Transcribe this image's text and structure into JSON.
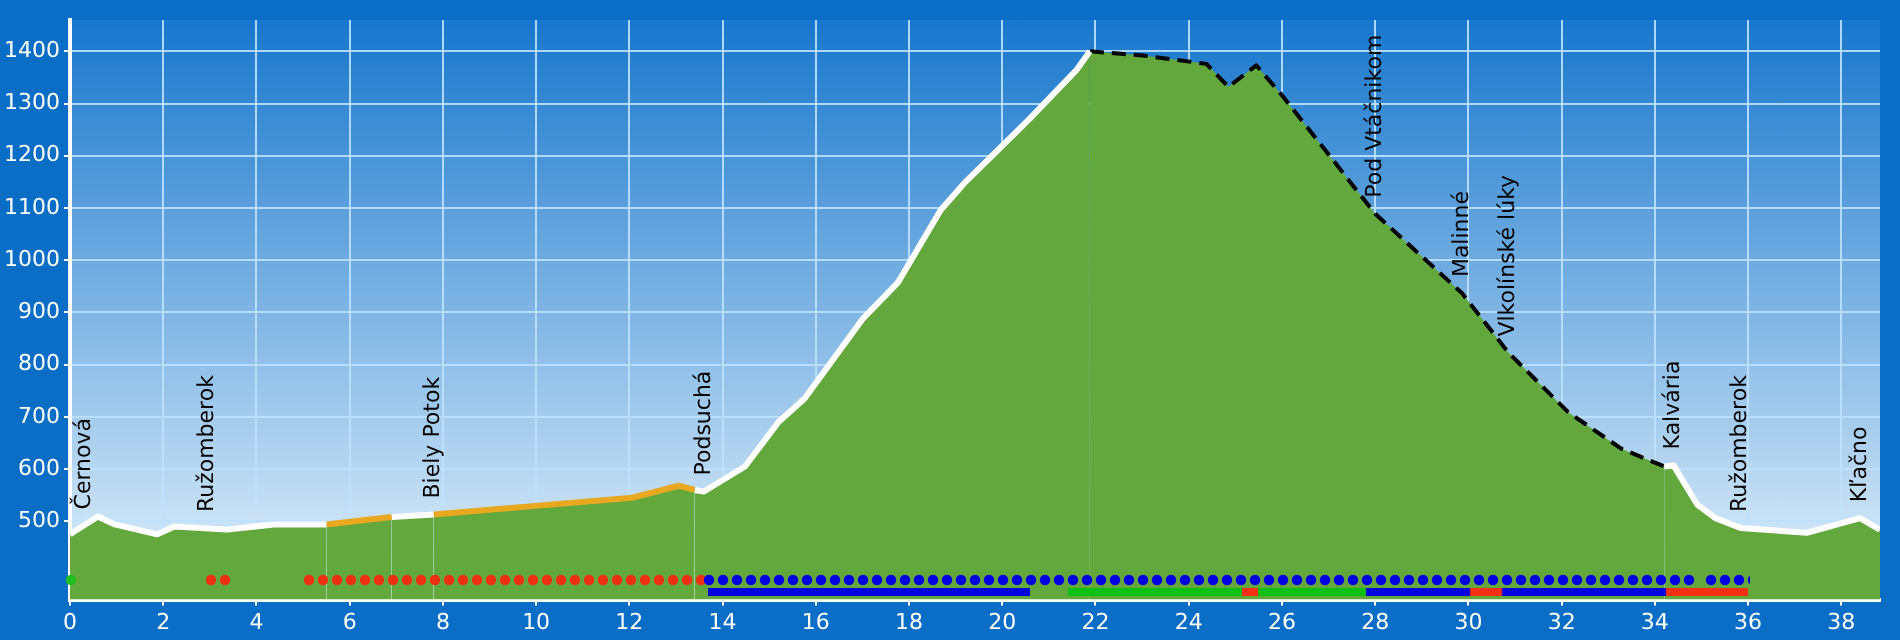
{
  "chart_data": {
    "type": "area",
    "xlim": [
      0,
      38.83
    ],
    "xticks": [
      0,
      2,
      4,
      6,
      8,
      10,
      12,
      14,
      16,
      18,
      20,
      22,
      24,
      26,
      28,
      30,
      32,
      34,
      36,
      38
    ],
    "ylim": [
      350,
      1460
    ],
    "yticks": [
      500,
      600,
      700,
      800,
      900,
      1000,
      1100,
      1200,
      1300,
      1400
    ],
    "grid": true,
    "legend": false,
    "marker": "none",
    "series": [
      {
        "color": "#ffffff",
        "line_style": "solid",
        "x": [
          0,
          0.6,
          0.96,
          1.87,
          2.24,
          3.37,
          4.37,
          5.5
        ],
        "values": [
          475,
          509,
          494,
          475,
          490,
          484,
          494,
          494
        ]
      },
      {
        "color": "#e8a820",
        "line_style": "solid",
        "x": [
          5.5,
          6.9
        ],
        "values": [
          494,
          508
        ]
      },
      {
        "color": "#ffffff",
        "line_style": "solid",
        "x": [
          6.9,
          7.8
        ],
        "values": [
          508,
          513
        ]
      },
      {
        "color": "#e8a820",
        "line_style": "solid",
        "x": [
          7.8,
          9.92,
          12.06,
          13.06,
          13.4
        ],
        "values": [
          513,
          529,
          545,
          568,
          560
        ]
      },
      {
        "color": "#ffffff",
        "line_style": "solid",
        "x": [
          13.4,
          13.6,
          14.48,
          15.2,
          15.76,
          17.0,
          17.76,
          18.68,
          19.18,
          20.6,
          21.6,
          21.88
        ],
        "values": [
          560,
          557,
          605,
          690,
          735,
          887,
          957,
          1096,
          1147,
          1272,
          1365,
          1400
        ]
      },
      {
        "color": "#000000",
        "line_style": "dashed",
        "x": [
          21.88,
          23.02,
          24.38,
          24.85,
          25.45,
          26.0,
          28.0,
          29.86,
          30.86,
          32.14,
          33.28,
          34.2
        ],
        "values": [
          1400,
          1392,
          1376,
          1332,
          1373,
          1316,
          1089,
          937,
          823,
          709,
          639,
          605
        ]
      },
      {
        "color": "#ffffff",
        "line_style": "solid",
        "x": [
          34.2,
          34.4,
          34.91,
          35.3,
          35.84,
          37.26,
          38.4,
          38.83
        ],
        "values": [
          605,
          607,
          532,
          506,
          487,
          478,
          506,
          484
        ]
      }
    ],
    "annotations": [
      {
        "text": "Černová",
        "x": 0.31,
        "y": 492
      },
      {
        "text": "Ružomberok",
        "x": 2.95,
        "y": 487
      },
      {
        "text": "Biely Potok",
        "x": 7.8,
        "y": 513
      },
      {
        "text": "Podsuchá",
        "x": 13.6,
        "y": 557
      },
      {
        "text": "Pod Vtáčnikom",
        "x": 28.0,
        "y": 1089
      },
      {
        "text": "Malinné",
        "x": 29.86,
        "y": 937
      },
      {
        "text": "Vlkolínské lúky",
        "x": 30.86,
        "y": 823
      },
      {
        "text": "Kalvária",
        "x": 34.4,
        "y": 607
      },
      {
        "text": "Ružomberok",
        "x": 35.84,
        "y": 487
      },
      {
        "text": "Kľačno",
        "x": 38.4,
        "y": 506
      }
    ]
  }
}
